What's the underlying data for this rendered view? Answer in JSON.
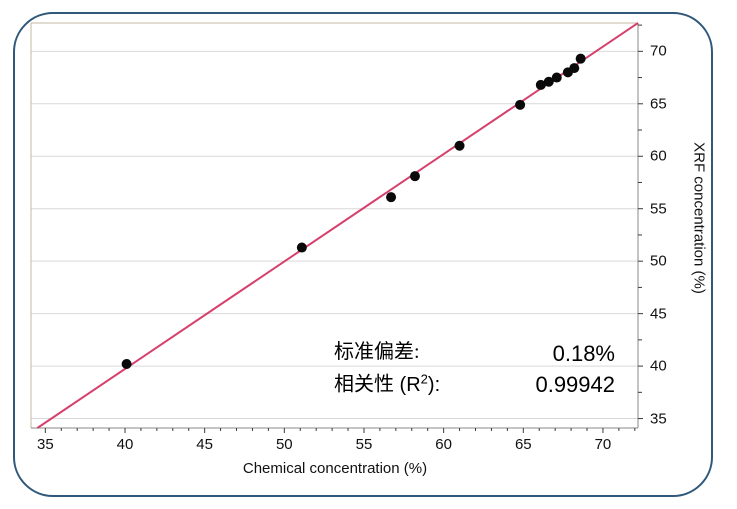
{
  "frame": {
    "border_color": "#30587a"
  },
  "chart_data": {
    "type": "scatter",
    "title": "",
    "xlabel": "Chemical concentration (%)",
    "ylabel": "XRF concentration (%)",
    "xlim": [
      34.1,
      72.2
    ],
    "ylim": [
      34.1,
      72.7
    ],
    "xticks": [
      35,
      40,
      45,
      50,
      55,
      60,
      65,
      70
    ],
    "yticks": [
      35,
      40,
      45,
      50,
      55,
      60,
      65,
      70
    ],
    "x_minor_step": 1,
    "y_minor_step": 2.5,
    "grid": "horizontal-only",
    "legend": "none",
    "points": [
      [
        40.1,
        40.2
      ],
      [
        51.1,
        51.3
      ],
      [
        56.7,
        56.1
      ],
      [
        58.2,
        58.1
      ],
      [
        61.0,
        61.0
      ],
      [
        64.8,
        64.9
      ],
      [
        66.1,
        66.8
      ],
      [
        66.6,
        67.1
      ],
      [
        67.1,
        67.5
      ],
      [
        67.8,
        68.0
      ],
      [
        68.2,
        68.4
      ],
      [
        68.6,
        69.3
      ]
    ],
    "regression_line": {
      "x1": 34.5,
      "y1": 34.1,
      "x2": 72.2,
      "y2": 72.7
    },
    "colors": {
      "point": "#0a0a0a",
      "line": "#d6406c",
      "grid": "#d9d9d9",
      "plot_border": "#c6b8a0",
      "axis": "#8a8a8a",
      "tick": "#3a3a3a"
    }
  },
  "annotations": {
    "std_dev": {
      "label": "标准偏差:",
      "value": "0.18%"
    },
    "correlation": {
      "cjk": "相关性",
      "latin_open": " (R",
      "sup": "2",
      "latin_close": "):",
      "value": "0.99942"
    }
  }
}
